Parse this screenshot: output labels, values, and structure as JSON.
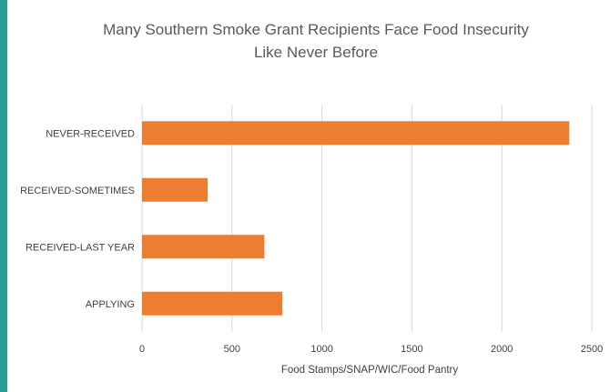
{
  "chart_data": {
    "type": "bar",
    "orientation": "horizontal",
    "title_lines": [
      "Many Southern  Smoke Grant Recipients Face Food  Insecurity",
      "Like Never Before"
    ],
    "xlabel": "Food Stamps/SNAP/WIC/Food Pantry",
    "ylabel": "",
    "categories": [
      "NEVER-RECEIVED",
      "RECEIVED-SOMETIMES",
      "RECEIVED-LAST YEAR",
      "APPLYING"
    ],
    "values": [
      2375,
      365,
      680,
      780
    ],
    "xlim": [
      0,
      2500
    ],
    "xticks": [
      "0",
      "500",
      "1000",
      "1500",
      "2000",
      "2500"
    ],
    "grid": true,
    "legend": "none",
    "bar_color": "#ed7d31",
    "grid_color": "#d9d9d9"
  }
}
